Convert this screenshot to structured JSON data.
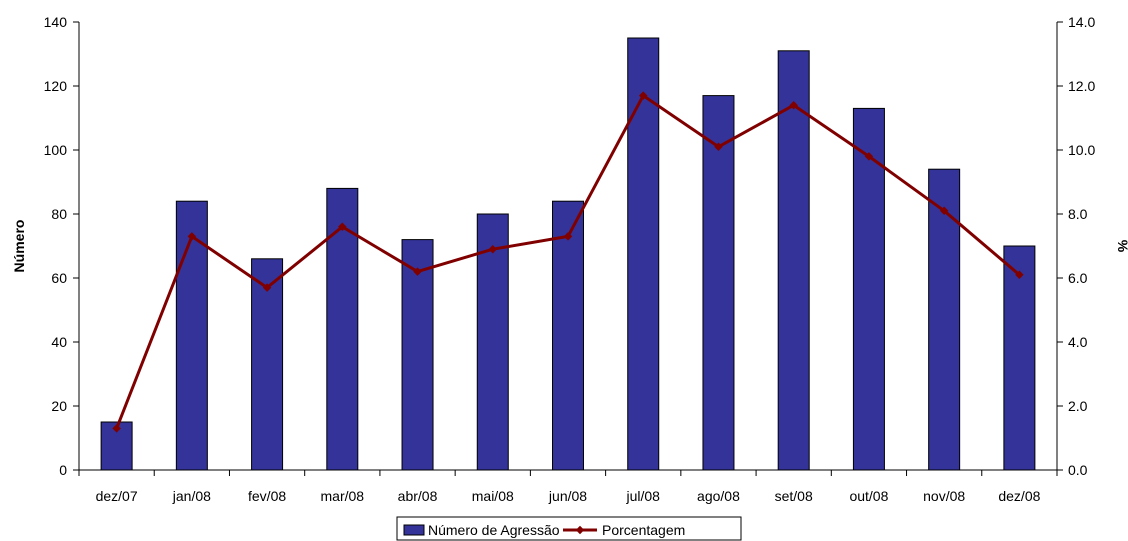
{
  "chart_data": {
    "type": "bar",
    "categories": [
      "dez/07",
      "jan/08",
      "fev/08",
      "mar/08",
      "abr/08",
      "mai/08",
      "jun/08",
      "jul/08",
      "ago/08",
      "set/08",
      "out/08",
      "nov/08",
      "dez/08"
    ],
    "series": [
      {
        "name": "Número de Agressão",
        "type": "bar",
        "axis": "left",
        "color": "#333399",
        "values": [
          15,
          84,
          66,
          88,
          72,
          80,
          84,
          135,
          117,
          131,
          113,
          94,
          70
        ]
      },
      {
        "name": "Porcentagem",
        "type": "line",
        "axis": "right",
        "color": "#800000",
        "values": [
          1.3,
          7.3,
          5.7,
          7.6,
          6.2,
          6.9,
          7.3,
          11.7,
          10.1,
          11.4,
          9.8,
          8.1,
          6.1
        ]
      }
    ],
    "ylabel": "Número",
    "y2label": "%",
    "ylim": [
      0,
      140
    ],
    "y2lim": [
      0,
      14
    ],
    "yticks": [
      "0",
      "20",
      "40",
      "60",
      "80",
      "100",
      "120",
      "140"
    ],
    "y2ticks": [
      "0.0",
      "2.0",
      "4.0",
      "6.0",
      "8.0",
      "10.0",
      "12.0",
      "14.0"
    ],
    "grid": false,
    "legend_position": "bottom"
  }
}
